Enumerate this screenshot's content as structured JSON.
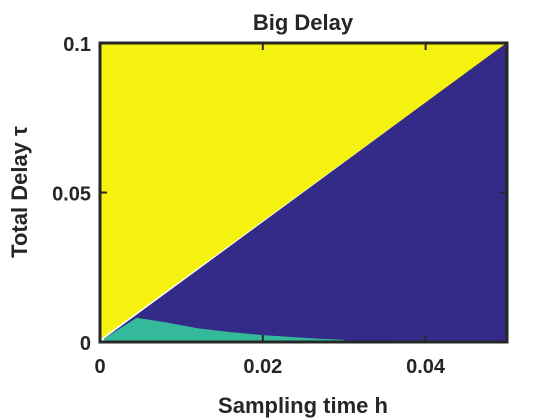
{
  "chart_data": {
    "type": "heatmap",
    "title": "Big Delay",
    "xlabel": "Sampling time h",
    "ylabel": "Total Delay τ",
    "xlim": [
      0,
      0.05
    ],
    "ylim": [
      0,
      0.1
    ],
    "x_ticks": [
      "0",
      "0.02",
      "0.04"
    ],
    "x_tick_values": [
      0,
      0.02,
      0.04
    ],
    "y_ticks": [
      "0",
      "0.05",
      "0.1"
    ],
    "y_tick_values": [
      0,
      0.05,
      0.1
    ],
    "grid": false,
    "regions": [
      {
        "name": "",
        "color": "#f5f20f",
        "polygon": [
          [
            0,
            0.001
          ],
          [
            0,
            0.1
          ],
          [
            0.05,
            0.1
          ]
        ]
      },
      {
        "name": "",
        "color": "#342a87",
        "polygon": [
          [
            0.0005,
            0.001
          ],
          [
            0.0045,
            0.008
          ],
          [
            0.008,
            0.0065
          ],
          [
            0.012,
            0.0045
          ],
          [
            0.016,
            0.0032
          ],
          [
            0.02,
            0.0022
          ],
          [
            0.024,
            0.0015
          ],
          [
            0.027,
            0.001
          ],
          [
            0.03,
            0.0006
          ],
          [
            0.05,
            0.0005
          ],
          [
            0.05,
            0.1
          ]
        ]
      },
      {
        "name": "",
        "color": "#35b99b",
        "polygon": [
          [
            0.0005,
            0.0005
          ],
          [
            0.0005,
            0.001
          ],
          [
            0.0045,
            0.008
          ],
          [
            0.008,
            0.0065
          ],
          [
            0.012,
            0.0045
          ],
          [
            0.016,
            0.0032
          ],
          [
            0.02,
            0.0022
          ],
          [
            0.024,
            0.0015
          ],
          [
            0.027,
            0.001
          ],
          [
            0.03,
            0.0006
          ],
          [
            0.03,
            0.0005
          ]
        ]
      }
    ]
  }
}
